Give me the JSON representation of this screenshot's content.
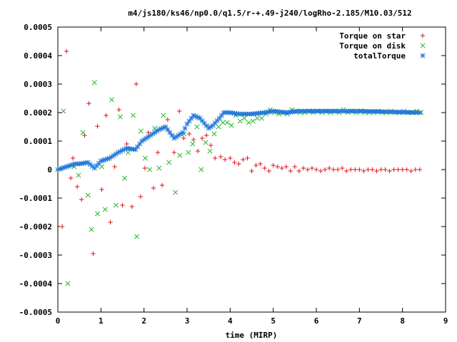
{
  "chart_data": {
    "type": "scatter",
    "title": "m4/js180/ks46/np0.0/q1.5/r-+.49-j240/logRho-2.185/M10.03/512",
    "xlabel": "time (MIRP)",
    "ylabel": "",
    "xlim": [
      0,
      9
    ],
    "ylim": [
      -0.0005,
      0.0005
    ],
    "xticks": [
      "0",
      "1",
      "2",
      "3",
      "4",
      "5",
      "6",
      "7",
      "8",
      "9"
    ],
    "yticks": [
      "-0.0005",
      "-0.0004",
      "-0.0003",
      "-0.0002",
      "-0.0001",
      "0",
      "0.0001",
      "0.0002",
      "0.0003",
      "0.0004",
      "0.0005"
    ],
    "grid": false,
    "legend_position": "top-right",
    "series": [
      {
        "name": "Torque on star",
        "marker": "+",
        "color": "#e0141e",
        "x": [
          0.1,
          0.2,
          0.3,
          0.35,
          0.45,
          0.55,
          0.62,
          0.72,
          0.82,
          0.92,
          1.02,
          1.12,
          1.22,
          1.32,
          1.42,
          1.5,
          1.6,
          1.72,
          1.82,
          1.92,
          2.02,
          2.1,
          2.22,
          2.32,
          2.42,
          2.55,
          2.7,
          2.82,
          2.92,
          3.05,
          3.15,
          3.25,
          3.35,
          3.45,
          3.55,
          3.65,
          3.78,
          3.88,
          4.0,
          4.1,
          4.2,
          4.3,
          4.4,
          4.5,
          4.6,
          4.7,
          4.8,
          4.9,
          5.0,
          5.1,
          5.2,
          5.3,
          5.4,
          5.5,
          5.6,
          5.7,
          5.8,
          5.9,
          6.0,
          6.1,
          6.2,
          6.3,
          6.4,
          6.5,
          6.6,
          6.7,
          6.8,
          6.9,
          7.0,
          7.1,
          7.2,
          7.3,
          7.4,
          7.5,
          7.6,
          7.7,
          7.8,
          7.9,
          8.0,
          8.1,
          8.2,
          8.3,
          8.4
        ],
        "y": [
          -0.0002,
          0.000415,
          -3e-05,
          4e-05,
          -6e-05,
          -0.000105,
          0.00012,
          0.000232,
          -0.000295,
          0.000152,
          -7e-05,
          0.00019,
          -0.000185,
          1e-05,
          0.00021,
          -0.000125,
          9e-05,
          -0.00013,
          0.0003,
          -9.5e-05,
          5e-06,
          0.00013,
          -6.5e-05,
          6e-05,
          -5.5e-05,
          0.000175,
          6e-05,
          0.000205,
          0.00011,
          0.000125,
          0.000105,
          6.5e-05,
          0.00011,
          0.00012,
          8.5e-05,
          4e-05,
          4.5e-05,
          3.5e-05,
          4e-05,
          2.5e-05,
          2e-05,
          3.5e-05,
          4e-05,
          -5e-06,
          1.5e-05,
          2e-05,
          5e-06,
          -5e-06,
          1.5e-05,
          1e-05,
          5e-06,
          1e-05,
          -5e-06,
          1e-05,
          -5e-06,
          5e-06,
          0.0,
          5e-06,
          0.0,
          -5e-06,
          0.0,
          5e-06,
          0.0,
          0.0,
          5e-06,
          -5e-06,
          0.0,
          0.0,
          0.0,
          -5e-06,
          0.0,
          0.0,
          -5e-06,
          0.0,
          0.0,
          -5e-06,
          0.0,
          0.0,
          0.0,
          0.0,
          -5e-06,
          0.0,
          0.0
        ]
      },
      {
        "name": "Torque on disk",
        "marker": "x",
        "color": "#1fb41f",
        "x": [
          0.13,
          0.23,
          0.38,
          0.48,
          0.58,
          0.7,
          0.78,
          0.85,
          0.92,
          1.02,
          1.1,
          1.25,
          1.35,
          1.45,
          1.55,
          1.63,
          1.75,
          1.83,
          1.93,
          2.03,
          2.13,
          2.25,
          2.35,
          2.45,
          2.58,
          2.73,
          2.83,
          2.93,
          3.03,
          3.13,
          3.23,
          3.33,
          3.43,
          3.53,
          3.63,
          3.73,
          3.83,
          3.93,
          4.03,
          4.13,
          4.23,
          4.33,
          4.43,
          4.53,
          4.63,
          4.73,
          4.83,
          4.93,
          5.03,
          5.13,
          5.23,
          5.33,
          5.43,
          5.53,
          5.63,
          5.73,
          5.83,
          5.93,
          6.03,
          6.13,
          6.23,
          6.33,
          6.43,
          6.53,
          6.63,
          6.73,
          6.83,
          6.93,
          7.03,
          7.13,
          7.23,
          7.33,
          7.43,
          7.53,
          7.63,
          7.73,
          7.83,
          7.93,
          8.03,
          8.13,
          8.23,
          8.33,
          8.43
        ],
        "y": [
          0.000205,
          -0.0004,
          1e-05,
          -2e-05,
          0.00013,
          -9e-05,
          -0.00021,
          0.000305,
          -0.000155,
          1e-05,
          -0.00014,
          0.000245,
          -0.000125,
          0.000185,
          -3e-05,
          6e-05,
          0.00019,
          -0.000235,
          0.000135,
          4e-05,
          0.0,
          0.000145,
          5e-06,
          0.00019,
          2.5e-05,
          -8e-05,
          5e-05,
          0.000125,
          6e-05,
          9e-05,
          0.00015,
          0.0,
          9.5e-05,
          6.5e-05,
          0.000125,
          0.00015,
          0.000165,
          0.000165,
          0.000155,
          0.00019,
          0.00017,
          0.00018,
          0.000165,
          0.00017,
          0.00018,
          0.00018,
          0.000195,
          0.00021,
          0.0002,
          0.000195,
          0.0002,
          0.000195,
          0.00021,
          0.000205,
          0.0002,
          0.0002,
          0.000205,
          0.0002,
          0.000205,
          0.0002,
          0.000205,
          0.0002,
          0.000205,
          0.0002,
          0.00021,
          0.0002,
          0.000205,
          0.0002,
          0.000205,
          0.0002,
          0.0002,
          0.0002,
          0.000205,
          0.0002,
          0.0002,
          0.000205,
          0.0002,
          0.0002,
          0.000205,
          0.0002,
          0.0002,
          0.000205,
          0.0002
        ]
      }
    ],
    "total_series": {
      "name": "totalTorque",
      "marker": "*",
      "color": "#1f77d9",
      "spacing": 0.05,
      "x_range": [
        0.0,
        8.4
      ],
      "anchor_x": [
        0.0,
        0.2,
        0.4,
        0.5,
        0.7,
        0.85,
        1.0,
        1.2,
        1.4,
        1.6,
        1.8,
        1.95,
        2.2,
        2.35,
        2.5,
        2.7,
        2.9,
        3.0,
        3.15,
        3.3,
        3.5,
        3.6,
        3.75,
        3.85,
        4.0,
        4.2,
        4.5,
        4.8,
        5.0,
        5.3,
        5.6,
        6.0,
        7.0,
        8.4
      ],
      "anchor_y": [
        0.0,
        1e-05,
        2e-05,
        2e-05,
        2.5e-05,
        5e-06,
        3e-05,
        4e-05,
        6e-05,
        7.5e-05,
        7e-05,
        0.0001,
        0.000125,
        0.00014,
        0.00015,
        0.00011,
        0.00013,
        0.00016,
        0.00019,
        0.00018,
        0.000145,
        0.000155,
        0.00018,
        0.0002,
        0.0002,
        0.000195,
        0.000195,
        0.0002,
        0.000205,
        0.0002,
        0.000205,
        0.000205,
        0.000205,
        0.0002
      ]
    }
  }
}
